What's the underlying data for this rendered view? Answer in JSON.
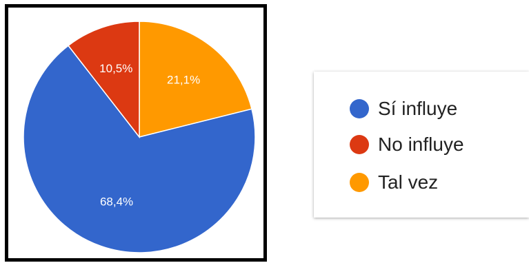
{
  "chart_data": {
    "type": "pie",
    "slices": [
      {
        "label": "Sí influye",
        "value": 68.4,
        "display": "68,4%",
        "color": "#3366cc"
      },
      {
        "label": "No influye",
        "value": 10.5,
        "display": "10,5%",
        "color": "#dc3912"
      },
      {
        "label": "Tal vez",
        "value": 21.1,
        "display": "21,1%",
        "color": "#ff9900"
      }
    ],
    "legend_position": "right",
    "data_labels": "inside"
  },
  "legend": {
    "items": [
      {
        "label": "Sí influye"
      },
      {
        "label": "No influye"
      },
      {
        "label": "Tal vez"
      }
    ]
  }
}
